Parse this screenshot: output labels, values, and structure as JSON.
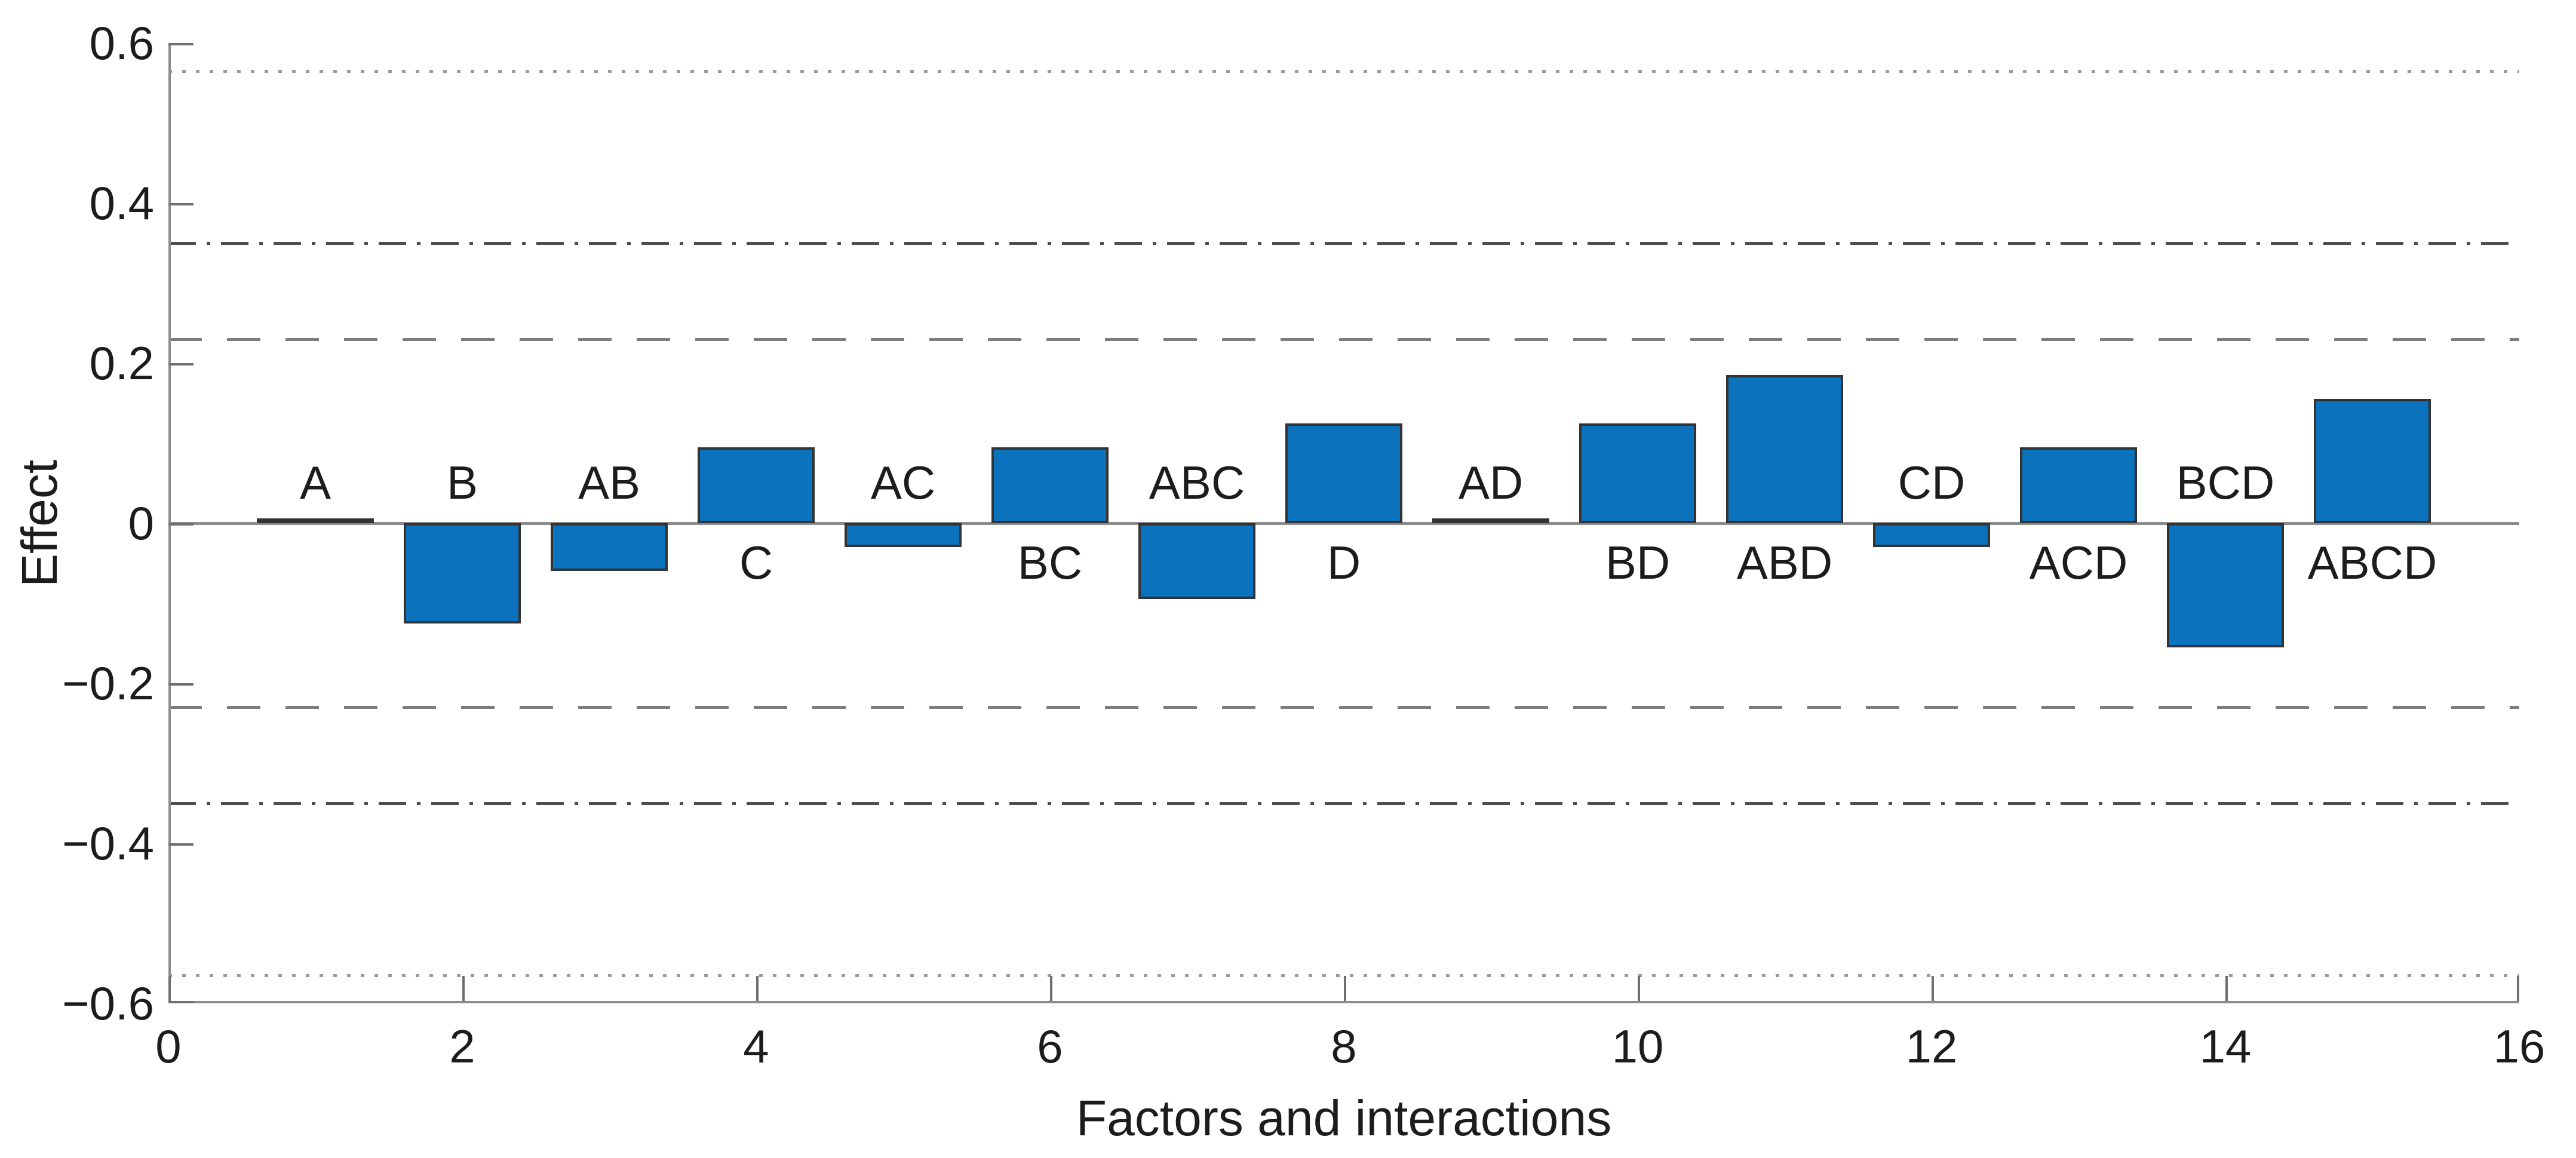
{
  "chart_data": {
    "type": "bar",
    "title": "",
    "xlabel": "Factors and interactions",
    "ylabel": "Effect",
    "categories": [
      "A",
      "B",
      "AB",
      "C",
      "AC",
      "BC",
      "ABC",
      "D",
      "AD",
      "BD",
      "ABD",
      "CD",
      "ACD",
      "BCD",
      "ABCD"
    ],
    "x_positions": [
      1,
      2,
      3,
      4,
      5,
      6,
      7,
      8,
      9,
      10,
      11,
      12,
      13,
      14,
      15
    ],
    "values": [
      0.005,
      -0.125,
      -0.06,
      0.095,
      -0.03,
      0.095,
      -0.095,
      0.125,
      0.005,
      0.125,
      0.185,
      -0.03,
      0.095,
      -0.155,
      0.155
    ],
    "label_side": [
      "above",
      "above",
      "above",
      "below",
      "above",
      "below",
      "above",
      "below",
      "above",
      "below",
      "below",
      "above",
      "below",
      "above",
      "below"
    ],
    "bar_width": 0.8,
    "xlim": [
      0,
      16
    ],
    "ylim": [
      -0.6,
      0.6
    ],
    "grid": false,
    "legend": null,
    "x_ticks": [
      {
        "value": 0,
        "label": "0"
      },
      {
        "value": 2,
        "label": "2"
      },
      {
        "value": 4,
        "label": "4"
      },
      {
        "value": 6,
        "label": "6"
      },
      {
        "value": 8,
        "label": "8"
      },
      {
        "value": 10,
        "label": "10"
      },
      {
        "value": 12,
        "label": "12"
      },
      {
        "value": 14,
        "label": "14"
      },
      {
        "value": 16,
        "label": "16"
      }
    ],
    "y_ticks": [
      {
        "value": 0.6,
        "label": "0.6"
      },
      {
        "value": 0.4,
        "label": "0.4"
      },
      {
        "value": 0.2,
        "label": "0.2"
      },
      {
        "value": 0,
        "label": "0"
      },
      {
        "value": -0.2,
        "label": "−0.2"
      },
      {
        "value": -0.4,
        "label": "−0.4"
      },
      {
        "value": -0.6,
        "label": "−0.6"
      }
    ],
    "reference_lines": [
      {
        "value": 0.565,
        "style": "dotted"
      },
      {
        "value": -0.565,
        "style": "dotted"
      },
      {
        "value": 0.35,
        "style": "dashdot"
      },
      {
        "value": -0.35,
        "style": "dashdot"
      },
      {
        "value": 0.23,
        "style": "dashed"
      },
      {
        "value": -0.23,
        "style": "dashed"
      }
    ]
  },
  "style": {
    "background": "#ffffff",
    "bar_fill": "#0b72bd",
    "bar_edge": "#333333",
    "axis_line": "#8c8c8c",
    "tick_mark": "#6f6f6f",
    "baseline": "#8c8c8c",
    "text": "#1c1c1c",
    "ref_dotted": "#9a9a9a",
    "ref_dashed": "#7d7d7d",
    "ref_dashdot": "#4d4d4d"
  }
}
